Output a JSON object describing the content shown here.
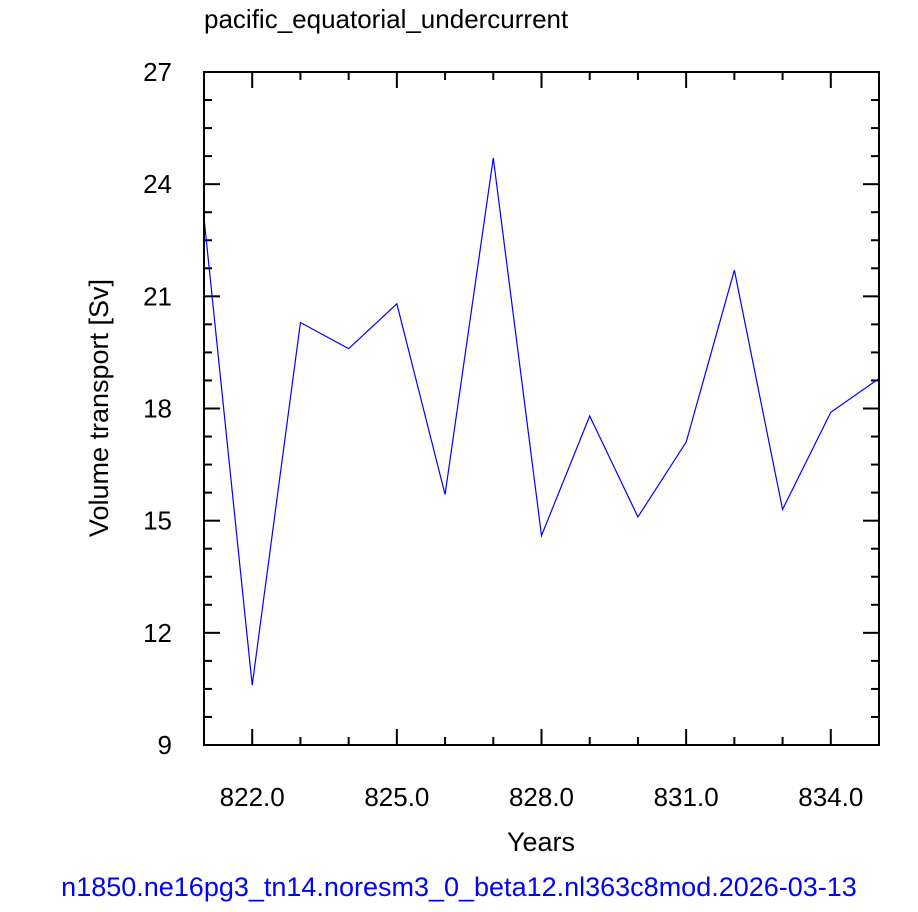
{
  "chart_data": {
    "type": "line",
    "title": "pacific_equatorial_undercurrent",
    "xlabel": "Years",
    "ylabel": "Volume transport [Sv]",
    "xlim": [
      821.0,
      835.0
    ],
    "ylim": [
      9,
      27
    ],
    "x_ticks": [
      822.0,
      825.0,
      828.0,
      831.0,
      834.0
    ],
    "x_tick_labels": [
      "822.0",
      "825.0",
      "828.0",
      "831.0",
      "834.0"
    ],
    "y_ticks": [
      9,
      12,
      15,
      18,
      21,
      24,
      27
    ],
    "y_tick_labels": [
      "9",
      "12",
      "15",
      "18",
      "21",
      "24",
      "27"
    ],
    "grid": false,
    "legend": "none",
    "line_color": "#0000ff",
    "series": [
      {
        "x": [
          821,
          822,
          823,
          824,
          825,
          826,
          827,
          828,
          829,
          830,
          831,
          832,
          833,
          834,
          835
        ],
        "values": [
          23.1,
          10.6,
          20.3,
          19.6,
          20.8,
          15.7,
          24.7,
          14.6,
          17.8,
          15.1,
          17.1,
          21.7,
          15.3,
          17.9,
          18.8
        ]
      }
    ]
  },
  "footer": {
    "caption": "n1850.ne16pg3_tn14.noresm3_0_beta12.nl363c8mod.2026-03-13",
    "color": "#0000ff"
  }
}
